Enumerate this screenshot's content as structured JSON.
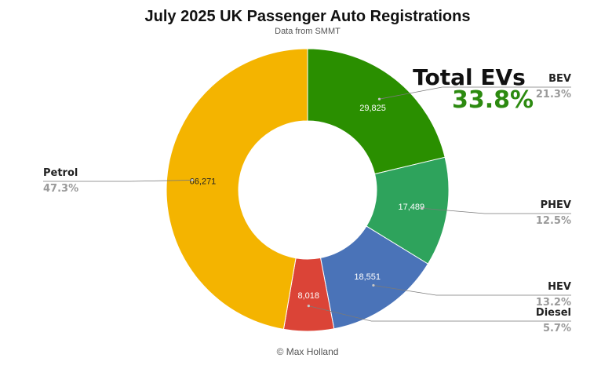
{
  "chart_data": {
    "type": "pie",
    "title": "July 2025 UK Passenger Auto Registrations",
    "subtitle": "Data from SMMT",
    "footer": "© Max Holland",
    "donut": true,
    "slices": [
      {
        "name": "BEV",
        "value": 29825,
        "value_label": "29,825",
        "percent_label": "21.3%",
        "color": "#2a8f00",
        "value_color": "#ffffff"
      },
      {
        "name": "PHEV",
        "value": 17489,
        "value_label": "17,489",
        "percent_label": "12.5%",
        "color": "#2ea35c",
        "value_color": "#ffffff"
      },
      {
        "name": "HEV",
        "value": 18551,
        "value_label": "18,551",
        "percent_label": "13.2%",
        "color": "#4a73b8",
        "value_color": "#ffffff"
      },
      {
        "name": "Diesel",
        "value": 8018,
        "value_label": "8,018",
        "percent_label": "5.7%",
        "color": "#db4437",
        "value_color": "#ffffff"
      },
      {
        "name": "Petrol",
        "value": 66271,
        "value_label": "66,271",
        "percent_label": "47.3%",
        "color": "#f4b400",
        "value_color": "#222222"
      }
    ],
    "annotation": {
      "label": "Total EVs",
      "value": "33.8%"
    }
  }
}
